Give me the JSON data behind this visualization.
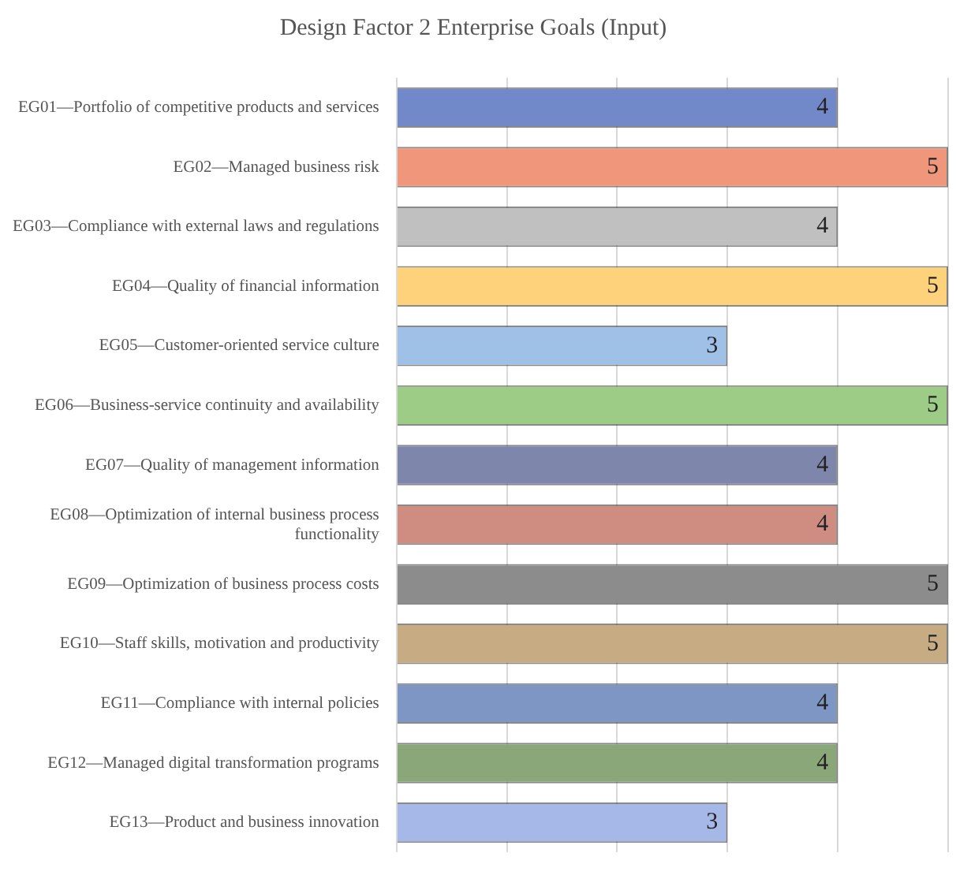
{
  "chart_data": {
    "type": "bar",
    "orientation": "horizontal",
    "title": "Design Factor 2 Enterprise Goals (Input)",
    "categories": [
      "EG01—Portfolio of competitive products and services",
      "EG02—Managed business risk",
      "EG03—Compliance with external laws and regulations",
      "EG04—Quality of financial information",
      "EG05—Customer-oriented service culture",
      "EG06—Business-service continuity and availability",
      "EG07—Quality of management information",
      "EG08—Optimization of internal business process functionality",
      "EG09—Optimization of business process costs",
      "EG10—Staff skills, motivation and productivity",
      "EG11—Compliance with internal policies",
      "EG12—Managed digital transformation programs",
      "EG13—Product and business innovation"
    ],
    "values": [
      4,
      5,
      4,
      5,
      3,
      5,
      4,
      4,
      5,
      5,
      4,
      4,
      3
    ],
    "colors": [
      "#7189c8",
      "#f0967a",
      "#c0c0c0",
      "#fdd27a",
      "#9fc1e8",
      "#9ccc85",
      "#7e86ac",
      "#cf8c80",
      "#8c8c8c",
      "#c7ab82",
      "#7e96c4",
      "#8aa77a",
      "#a6b8e8"
    ],
    "xlim": [
      0,
      5
    ],
    "xticks": [
      {
        "value": 0,
        "label": null
      },
      {
        "value": 1,
        "label": null
      },
      {
        "value": 2,
        "label": null
      },
      {
        "value": 3,
        "label": null
      },
      {
        "value": 4,
        "label": null
      },
      {
        "value": 5,
        "label": null
      }
    ],
    "grid": "x",
    "tick_labels": "y",
    "data_labels": true,
    "legend": false
  }
}
